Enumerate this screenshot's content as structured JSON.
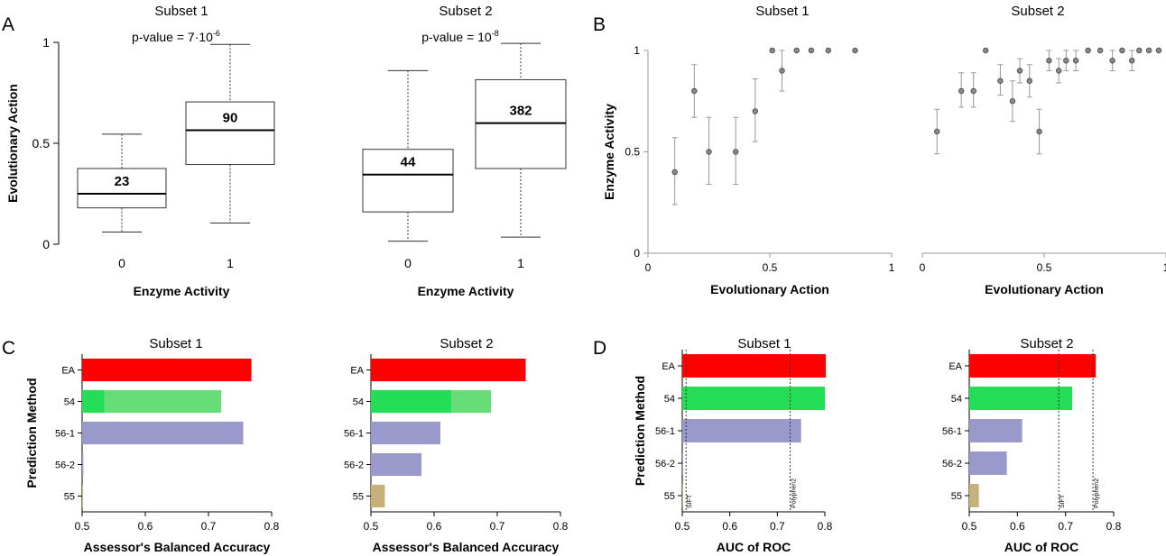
{
  "panel_letters": [
    "A",
    "B",
    "C",
    "D"
  ],
  "superscripts": {
    "sup_a1": "-6",
    "sup_a2": "-8"
  },
  "chart_data": [
    {
      "id": "A1",
      "type": "box",
      "panel": "A",
      "title": "Subset 1",
      "xlabel": "Enzyme Activity",
      "ylabel": "Evolutionary Action",
      "ylim": [
        0,
        1
      ],
      "yticks": [
        "0",
        "0.5",
        "1"
      ],
      "annotation": "p-value = 7·10",
      "categories": [
        "0",
        "1"
      ],
      "boxes": [
        {
          "category": "0",
          "min": 0.06,
          "q1": 0.18,
          "median": 0.25,
          "q3": 0.375,
          "max": 0.545,
          "n": "23"
        },
        {
          "category": "1",
          "min": 0.105,
          "q1": 0.395,
          "median": 0.565,
          "q3": 0.705,
          "max": 0.99,
          "n": "90"
        }
      ]
    },
    {
      "id": "A2",
      "type": "box",
      "panel": "A",
      "title": "Subset 2",
      "xlabel": "Enzyme Activity",
      "ylabel": "",
      "ylim": [
        0,
        1
      ],
      "yticks": [],
      "annotation": "p-value = 10",
      "categories": [
        "0",
        "1"
      ],
      "boxes": [
        {
          "category": "0",
          "min": 0.015,
          "q1": 0.16,
          "median": 0.345,
          "q3": 0.47,
          "max": 0.86,
          "n": "44"
        },
        {
          "category": "1",
          "min": 0.035,
          "q1": 0.375,
          "median": 0.6,
          "q3": 0.815,
          "max": 0.995,
          "n": "382"
        }
      ]
    },
    {
      "id": "B1",
      "type": "scatter",
      "panel": "B",
      "title": "Subset 1",
      "xlabel": "Evolutionary Action",
      "ylabel": "Enzyme Activity",
      "xlim": [
        0,
        1
      ],
      "ylim": [
        0,
        1
      ],
      "xticks": [
        "0",
        "0.5",
        "1"
      ],
      "yticks": [
        "0",
        "0.5",
        "1"
      ],
      "points": [
        {
          "x": 0.11,
          "y": 0.4,
          "lo": 0.24,
          "hi": 0.57
        },
        {
          "x": 0.19,
          "y": 0.8,
          "lo": 0.67,
          "hi": 0.93
        },
        {
          "x": 0.25,
          "y": 0.5,
          "lo": 0.34,
          "hi": 0.67
        },
        {
          "x": 0.36,
          "y": 0.5,
          "lo": 0.34,
          "hi": 0.67
        },
        {
          "x": 0.44,
          "y": 0.7,
          "lo": 0.55,
          "hi": 0.86
        },
        {
          "x": 0.51,
          "y": 1.0,
          "lo": 1.0,
          "hi": 1.0
        },
        {
          "x": 0.55,
          "y": 0.9,
          "lo": 0.8,
          "hi": 1.0
        },
        {
          "x": 0.61,
          "y": 1.0,
          "lo": 1.0,
          "hi": 1.0
        },
        {
          "x": 0.67,
          "y": 1.0,
          "lo": 1.0,
          "hi": 1.0
        },
        {
          "x": 0.74,
          "y": 1.0,
          "lo": 1.0,
          "hi": 1.0
        },
        {
          "x": 0.85,
          "y": 1.0,
          "lo": 1.0,
          "hi": 1.0
        }
      ]
    },
    {
      "id": "B2",
      "type": "scatter",
      "panel": "B",
      "title": "Subset 2",
      "xlabel": "Evolutionary Action",
      "ylabel": "",
      "xlim": [
        0,
        1
      ],
      "ylim": [
        0,
        1
      ],
      "xticks": [
        "0",
        "0.5",
        "1"
      ],
      "yticks": [],
      "points": [
        {
          "x": 0.06,
          "y": 0.6,
          "lo": 0.49,
          "hi": 0.71
        },
        {
          "x": 0.16,
          "y": 0.8,
          "lo": 0.72,
          "hi": 0.89
        },
        {
          "x": 0.21,
          "y": 0.8,
          "lo": 0.72,
          "hi": 0.89
        },
        {
          "x": 0.26,
          "y": 1.0,
          "lo": 1.0,
          "hi": 1.0
        },
        {
          "x": 0.32,
          "y": 0.85,
          "lo": 0.78,
          "hi": 0.93
        },
        {
          "x": 0.37,
          "y": 0.75,
          "lo": 0.65,
          "hi": 0.85
        },
        {
          "x": 0.4,
          "y": 0.9,
          "lo": 0.84,
          "hi": 0.96
        },
        {
          "x": 0.44,
          "y": 0.85,
          "lo": 0.77,
          "hi": 0.93
        },
        {
          "x": 0.48,
          "y": 0.6,
          "lo": 0.49,
          "hi": 0.71
        },
        {
          "x": 0.52,
          "y": 0.95,
          "lo": 0.9,
          "hi": 1.0
        },
        {
          "x": 0.56,
          "y": 0.9,
          "lo": 0.84,
          "hi": 0.96
        },
        {
          "x": 0.59,
          "y": 0.95,
          "lo": 0.9,
          "hi": 1.0
        },
        {
          "x": 0.63,
          "y": 0.95,
          "lo": 0.9,
          "hi": 1.0
        },
        {
          "x": 0.68,
          "y": 1.0,
          "lo": 1.0,
          "hi": 1.0
        },
        {
          "x": 0.73,
          "y": 1.0,
          "lo": 1.0,
          "hi": 1.0
        },
        {
          "x": 0.78,
          "y": 0.95,
          "lo": 0.9,
          "hi": 1.0
        },
        {
          "x": 0.82,
          "y": 1.0,
          "lo": 1.0,
          "hi": 1.0
        },
        {
          "x": 0.86,
          "y": 0.95,
          "lo": 0.9,
          "hi": 1.0
        },
        {
          "x": 0.89,
          "y": 1.0,
          "lo": 1.0,
          "hi": 1.0
        },
        {
          "x": 0.93,
          "y": 1.0,
          "lo": 1.0,
          "hi": 1.0
        },
        {
          "x": 0.97,
          "y": 1.0,
          "lo": 1.0,
          "hi": 1.0
        }
      ]
    },
    {
      "id": "C1",
      "type": "bar",
      "panel": "C",
      "title": "Subset 1",
      "xlabel": "Assessor's Balanced Accuracy",
      "ylabel": "Prediction Method",
      "xlim": [
        0.5,
        0.8
      ],
      "xticks": [
        "0.5",
        "0.6",
        "0.7",
        "0.8"
      ],
      "categories": [
        "EA",
        "54",
        "56-1",
        "56-2",
        "55"
      ],
      "colors": [
        "#ff0000",
        "#22dd55",
        "#9999cc",
        "#9999cc",
        "#c8b07a"
      ],
      "values": [
        0.768,
        0.535,
        0.755,
        0.502,
        0.501
      ],
      "overlay": [
        null,
        {
          "value": 0.72,
          "color": "#66dd77"
        },
        null,
        null,
        null
      ]
    },
    {
      "id": "C2",
      "type": "bar",
      "panel": "C",
      "title": "Subset 2",
      "xlabel": "Assessor's Balanced Accuracy",
      "ylabel": "",
      "xlim": [
        0.5,
        0.8
      ],
      "xticks": [
        "0.5",
        "0.6",
        "0.7",
        "0.8"
      ],
      "categories": [
        "EA",
        "54",
        "56-1",
        "56-2",
        "55"
      ],
      "colors": [
        "#ff0000",
        "#22dd55",
        "#9999cc",
        "#9999cc",
        "#c8b07a"
      ],
      "values": [
        0.745,
        0.627,
        0.61,
        0.58,
        0.522
      ],
      "overlay": [
        null,
        {
          "value": 0.69,
          "color": "#66dd77"
        },
        null,
        null,
        null
      ]
    },
    {
      "id": "D1",
      "type": "bar",
      "panel": "D",
      "title": "Subset 1",
      "xlabel": "AUC of ROC",
      "ylabel": "Prediction Method",
      "xlim": [
        0.5,
        0.8
      ],
      "xticks": [
        "0.5",
        "0.6",
        "0.7",
        "0.8"
      ],
      "categories": [
        "EA",
        "54",
        "56-1",
        "56-2",
        "55"
      ],
      "colors": [
        "#ff0000",
        "#22dd55",
        "#9999cc",
        "#9999cc",
        "#c8b07a"
      ],
      "values": [
        0.802,
        0.8,
        0.75,
        0.5,
        0.495
      ],
      "reference_lines": [
        {
          "label": "SIFT",
          "value": 0.508
        },
        {
          "label": "Polyphen2",
          "value": 0.727
        }
      ]
    },
    {
      "id": "D2",
      "type": "bar",
      "panel": "D",
      "title": "Subset 2",
      "xlabel": "AUC of ROC",
      "ylabel": "",
      "xlim": [
        0.5,
        0.8
      ],
      "xticks": [
        "0.5",
        "0.6",
        "0.7",
        "0.8"
      ],
      "categories": [
        "EA",
        "54",
        "56-1",
        "56-2",
        "55"
      ],
      "colors": [
        "#ff0000",
        "#22dd55",
        "#9999cc",
        "#9999cc",
        "#c8b07a"
      ],
      "values": [
        0.763,
        0.714,
        0.61,
        0.578,
        0.52
      ],
      "reference_lines": [
        {
          "label": "SIFT",
          "value": 0.686
        },
        {
          "label": "Polyphen2",
          "value": 0.757
        }
      ]
    }
  ]
}
